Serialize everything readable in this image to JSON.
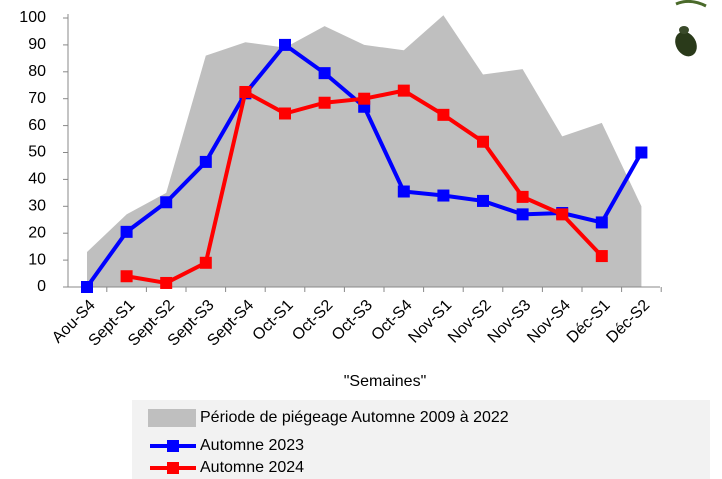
{
  "chart_data": {
    "type": "line",
    "x_label": "\"Semaines\"",
    "categories": [
      "Aou-S4",
      "Sept-S1",
      "Sept-S2",
      "Sept-S3",
      "Sept-S4",
      "Oct-S1",
      "Oct-S2",
      "Oct-S3",
      "Oct-S4",
      "Nov-S1",
      "Nov-S2",
      "Nov-S3",
      "Nov-S4",
      "Déc-S1",
      "Déc-S2"
    ],
    "series": [
      {
        "name": "Période de piégeage Automne 2009 à 2022",
        "color": "#bfbfbf",
        "kind": "area",
        "values": [
          13,
          27,
          35,
          86,
          91,
          89,
          97,
          90,
          88,
          101,
          79,
          81,
          56,
          61,
          30
        ]
      },
      {
        "name": "Automne 2023",
        "color": "#0000ff",
        "kind": "line",
        "values": [
          0,
          20.5,
          31.5,
          46.5,
          72,
          90,
          79.5,
          67,
          35.5,
          34,
          32,
          27,
          27.5,
          24,
          50
        ]
      },
      {
        "name": "Automne 2024",
        "color": "#ff0000",
        "kind": "line",
        "values": [
          null,
          4,
          1.5,
          9,
          72.5,
          64.5,
          68.5,
          70,
          73,
          64,
          54,
          33.5,
          27,
          11.5,
          null
        ]
      }
    ],
    "ylim": [
      0,
      100
    ],
    "yticks": [
      0,
      10,
      20,
      30,
      40,
      50,
      60,
      70,
      80,
      90,
      100
    ],
    "grid": false
  }
}
